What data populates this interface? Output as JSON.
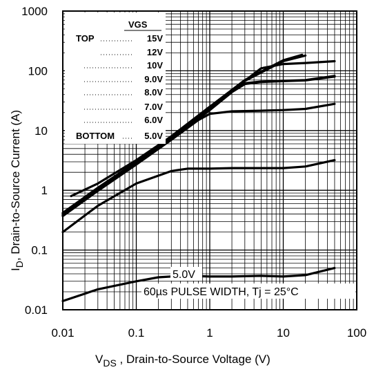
{
  "chart_data": {
    "type": "line",
    "x_scale": "log",
    "y_scale": "log",
    "xlim": [
      0.01,
      100
    ],
    "ylim": [
      0.01,
      1000
    ],
    "grid": true,
    "x_ticks": [
      "0.01",
      "0.1",
      "1",
      "10",
      "100"
    ],
    "y_ticks": [
      "1000",
      "100",
      "10",
      "1",
      "0.1",
      "0.01"
    ],
    "xlabel_main": "V",
    "xlabel_sub": "DS",
    "xlabel_rest": " , Drain-to-Source Voltage (V)",
    "ylabel_main": "I",
    "ylabel_sub": "D",
    "ylabel_rest": ",  Drain-to-Source Current (A)",
    "legend": {
      "header": "VGS",
      "top_label": "TOP",
      "bottom_label": "BOTTOM",
      "entries": [
        "15V",
        "12V",
        "10V",
        "9.0V",
        "8.0V",
        "7.0V",
        "6.0V",
        "5.0V"
      ]
    },
    "annotations": {
      "series_label": "5.0V",
      "pulse_note": "60µs PULSE WIDTH,  Tj = 25°C"
    },
    "series": [
      {
        "name": "15V",
        "x": [
          0.013,
          0.03,
          0.1,
          0.3,
          1,
          3,
          10,
          18
        ],
        "y": [
          0.8,
          1.3,
          3.2,
          8,
          25,
          70,
          150,
          185
        ]
      },
      {
        "name": "12V",
        "x": [
          0.01,
          0.03,
          0.1,
          0.3,
          1,
          3,
          10,
          20
        ],
        "y": [
          0.42,
          1.1,
          3.0,
          8,
          25,
          68,
          145,
          180
        ]
      },
      {
        "name": "10V",
        "x": [
          0.01,
          0.03,
          0.1,
          0.3,
          1,
          3,
          5,
          10,
          20,
          50
        ],
        "y": [
          0.4,
          1.05,
          2.9,
          7.5,
          24,
          68,
          110,
          130,
          135,
          145
        ]
      },
      {
        "name": "9.0V",
        "x": [
          0.01,
          0.03,
          0.1,
          0.3,
          1,
          2,
          3,
          5,
          10,
          20,
          50
        ],
        "y": [
          0.38,
          1.0,
          2.8,
          7.2,
          23,
          46,
          62,
          66,
          68,
          70,
          82
        ]
      },
      {
        "name": "8.0V",
        "x": [
          0.01,
          0.03,
          0.1,
          0.3,
          1,
          2,
          3,
          5,
          10,
          20,
          50
        ],
        "y": [
          0.37,
          0.98,
          2.7,
          7.0,
          22,
          44,
          60,
          65,
          67,
          69,
          80
        ]
      },
      {
        "name": "7.0V",
        "x": [
          0.01,
          0.03,
          0.1,
          0.3,
          0.7,
          1,
          2,
          5,
          10,
          20,
          50
        ],
        "y": [
          0.4,
          1.05,
          2.8,
          7.0,
          15,
          19,
          21,
          21.5,
          22,
          23,
          28
        ]
      },
      {
        "name": "6.0V",
        "x": [
          0.01,
          0.03,
          0.1,
          0.3,
          0.5,
          1,
          2,
          5,
          10,
          20,
          50
        ],
        "y": [
          0.2,
          0.55,
          1.3,
          2.1,
          2.3,
          2.3,
          2.35,
          2.35,
          2.35,
          2.5,
          3.2
        ]
      },
      {
        "name": "5.0V",
        "x": [
          0.01,
          0.03,
          0.1,
          0.2,
          0.3,
          0.5,
          1,
          2,
          5,
          10,
          20,
          50
        ],
        "y": [
          0.014,
          0.022,
          0.03,
          0.035,
          0.036,
          0.037,
          0.036,
          0.036,
          0.037,
          0.036,
          0.038,
          0.05
        ]
      }
    ]
  }
}
